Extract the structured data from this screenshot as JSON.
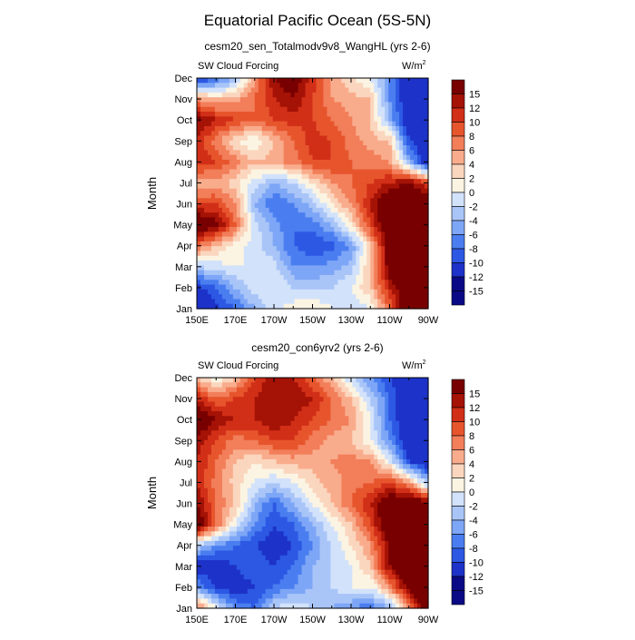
{
  "figure": {
    "title": "Equatorial Pacific Ocean (5S-5N)"
  },
  "chart_data": [
    {
      "type": "heatmap",
      "subtitle": "cesm20_sen_Totalmodv9v8_WangHL (yrs 2-6)",
      "left_label": "SW Cloud Forcing",
      "right_label": "W/m",
      "right_label_sup": "2",
      "ylabel": "Month",
      "x_ticks": [
        "150E",
        "170E",
        "170W",
        "150W",
        "130W",
        "110W",
        "90W"
      ],
      "y_ticks": [
        "Jan",
        "Feb",
        "Mar",
        "Apr",
        "May",
        "Jun",
        "Jul",
        "Aug",
        "Sep",
        "Oct",
        "Nov",
        "Dec"
      ],
      "colorbar_labels": [
        "15",
        "12",
        "10",
        "8",
        "6",
        "4",
        "2",
        "0",
        "-2",
        "-4",
        "-6",
        "-8",
        "-10",
        "-12",
        "-15"
      ],
      "levels": [
        -15,
        -12,
        -10,
        -8,
        -6,
        -4,
        -2,
        0,
        2,
        4,
        6,
        8,
        10,
        12,
        15
      ],
      "x_values_deg_east": [
        150,
        160,
        170,
        180,
        190,
        200,
        210,
        220,
        230,
        240,
        250,
        260,
        270
      ],
      "z": [
        [
          -15,
          -13,
          -10,
          -6,
          -3,
          -1,
          0,
          -2,
          -4,
          -2,
          6,
          16,
          16
        ],
        [
          -13,
          -10,
          -6,
          -3,
          -2,
          -4,
          -5,
          -4,
          -2,
          2,
          10,
          16,
          16
        ],
        [
          -4,
          -3,
          -2,
          -2,
          -3,
          -8,
          -8,
          -7,
          -5,
          2,
          14,
          17,
          17
        ],
        [
          6,
          2,
          -1,
          -3,
          -6,
          -10,
          -12,
          -11,
          -8,
          2,
          14,
          17,
          17
        ],
        [
          16,
          13,
          6,
          -3,
          -7,
          -10,
          -9,
          -6,
          0,
          8,
          16,
          17,
          16
        ],
        [
          8,
          8,
          4,
          -6,
          -10,
          -8,
          -5,
          0,
          4,
          10,
          16,
          17,
          16
        ],
        [
          2,
          3,
          1,
          -3,
          -6,
          -4,
          0,
          4,
          6,
          8,
          10,
          12,
          8
        ],
        [
          10,
          8,
          5,
          2,
          3,
          5,
          8,
          8,
          6,
          5,
          4,
          -6,
          -15
        ],
        [
          9,
          5,
          0,
          -2,
          2,
          6,
          9,
          8,
          5,
          3,
          2,
          -12,
          -15
        ],
        [
          13,
          10,
          8,
          6,
          8,
          9,
          8,
          6,
          4,
          2,
          -6,
          -15,
          -15
        ],
        [
          4,
          2,
          3,
          6,
          10,
          12,
          8,
          4,
          3,
          2,
          -8,
          -15,
          -15
        ],
        [
          -14,
          -10,
          -6,
          4,
          12,
          14,
          9,
          4,
          0,
          -2,
          -8,
          -15,
          -15
        ]
      ]
    },
    {
      "type": "heatmap",
      "subtitle": "cesm20_con6yrv2 (yrs 2-6)",
      "left_label": "SW Cloud Forcing",
      "right_label": "W/m",
      "right_label_sup": "2",
      "ylabel": "Month",
      "x_ticks": [
        "150E",
        "170E",
        "170W",
        "150W",
        "130W",
        "110W",
        "90W"
      ],
      "y_ticks": [
        "Jan",
        "Feb",
        "Mar",
        "Apr",
        "May",
        "Jun",
        "Jul",
        "Aug",
        "Sep",
        "Oct",
        "Nov",
        "Dec"
      ],
      "colorbar_labels": [
        "15",
        "12",
        "10",
        "8",
        "6",
        "4",
        "2",
        "0",
        "-2",
        "-4",
        "-6",
        "-8",
        "-10",
        "-12",
        "-15"
      ],
      "levels": [
        -15,
        -12,
        -10,
        -8,
        -6,
        -4,
        -2,
        0,
        2,
        4,
        6,
        8,
        10,
        12,
        15
      ],
      "x_values_deg_east": [
        150,
        160,
        170,
        180,
        190,
        200,
        210,
        220,
        230,
        240,
        250,
        260,
        270
      ],
      "z": [
        [
          6,
          -2,
          -8,
          -10,
          -4,
          -2,
          -4,
          -6,
          -8,
          -10,
          -6,
          4,
          16
        ],
        [
          -8,
          -12,
          -14,
          -12,
          -10,
          -8,
          -6,
          -4,
          -2,
          -2,
          4,
          14,
          17
        ],
        [
          -14,
          -14,
          -12,
          -10,
          -12,
          -10,
          -6,
          -4,
          -2,
          2,
          12,
          17,
          17
        ],
        [
          -4,
          -8,
          -10,
          -12,
          -14,
          -12,
          -8,
          -4,
          0,
          4,
          12,
          17,
          17
        ],
        [
          16,
          6,
          -2,
          -8,
          -12,
          -10,
          -6,
          -2,
          2,
          8,
          16,
          17,
          17
        ],
        [
          12,
          6,
          2,
          -6,
          -10,
          -6,
          -2,
          2,
          6,
          10,
          15,
          16,
          14
        ],
        [
          10,
          5,
          1,
          -2,
          -4,
          -2,
          1,
          3,
          5,
          6,
          8,
          4,
          -6
        ],
        [
          10,
          6,
          2,
          0,
          2,
          3,
          3,
          4,
          5,
          4,
          -2,
          -12,
          -15
        ],
        [
          11,
          8,
          5,
          6,
          8,
          8,
          5,
          3,
          2,
          -2,
          -8,
          -15,
          -15
        ],
        [
          16,
          12,
          10,
          10,
          12,
          10,
          8,
          6,
          4,
          -2,
          -10,
          -15,
          -15
        ],
        [
          10,
          6,
          8,
          10,
          12,
          12,
          10,
          6,
          2,
          -4,
          -10,
          -15,
          -15
        ],
        [
          2,
          -2,
          2,
          8,
          12,
          10,
          6,
          2,
          -4,
          -8,
          -12,
          -15,
          -15
        ]
      ]
    }
  ],
  "palette": [
    "#0a0a86",
    "#1d32c8",
    "#2c58e4",
    "#4a7ef0",
    "#7ea6f6",
    "#a9c5f8",
    "#d2e2fb",
    "#fbf4e3",
    "#fbd6be",
    "#f9ac8c",
    "#f27e5a",
    "#e7552d",
    "#d12f17",
    "#a51206",
    "#790000"
  ]
}
